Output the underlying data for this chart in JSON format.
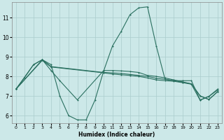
{
  "xlabel": "Humidex (Indice chaleur)",
  "bg_color": "#cce8e8",
  "grid_color": "#aacccc",
  "line_color": "#2a7060",
  "xlim": [
    -0.5,
    23.5
  ],
  "ylim": [
    5.6,
    11.8
  ],
  "xticks": [
    0,
    1,
    2,
    3,
    4,
    5,
    6,
    7,
    8,
    9,
    10,
    11,
    12,
    13,
    14,
    15,
    16,
    17,
    18,
    19,
    20,
    21,
    22,
    23
  ],
  "yticks": [
    6,
    7,
    8,
    9,
    10,
    11
  ],
  "peaked_x": [
    0,
    1,
    2,
    3,
    4,
    5,
    6,
    7,
    8,
    9,
    10,
    11,
    12,
    13,
    14,
    15,
    16,
    17,
    18,
    19,
    20,
    21,
    22,
    23
  ],
  "peaked_y": [
    7.35,
    7.95,
    8.6,
    8.85,
    8.6,
    7.0,
    6.0,
    5.78,
    5.78,
    6.78,
    8.28,
    9.55,
    10.3,
    11.15,
    11.5,
    11.55,
    9.55,
    7.85,
    7.78,
    7.78,
    7.78,
    6.8,
    6.98,
    7.35
  ],
  "line2_x": [
    0,
    2,
    3,
    4,
    5,
    7,
    10,
    11,
    12,
    13,
    14,
    15,
    16,
    17,
    18,
    19,
    20,
    21,
    22,
    23
  ],
  "line2_y": [
    7.35,
    8.6,
    8.85,
    8.3,
    7.78,
    6.8,
    8.3,
    8.3,
    8.28,
    8.25,
    8.2,
    8.05,
    8.0,
    7.92,
    7.82,
    7.72,
    7.62,
    7.0,
    6.82,
    7.22
  ],
  "line3_x": [
    0,
    3,
    4,
    10,
    11,
    12,
    13,
    14,
    15,
    16,
    17,
    18,
    19,
    20,
    21,
    22,
    23
  ],
  "line3_y": [
    7.35,
    8.85,
    8.5,
    8.2,
    8.18,
    8.15,
    8.1,
    8.05,
    8.0,
    7.9,
    7.85,
    7.78,
    7.7,
    7.62,
    7.0,
    6.82,
    7.22
  ],
  "line4_x": [
    0,
    3,
    4,
    10,
    11,
    12,
    13,
    14,
    15,
    16,
    17,
    18,
    19,
    20,
    21,
    22,
    23
  ],
  "line4_y": [
    7.35,
    8.82,
    8.48,
    8.18,
    8.12,
    8.08,
    8.05,
    8.0,
    7.92,
    7.82,
    7.78,
    7.75,
    7.68,
    7.6,
    6.78,
    6.98,
    7.3
  ]
}
